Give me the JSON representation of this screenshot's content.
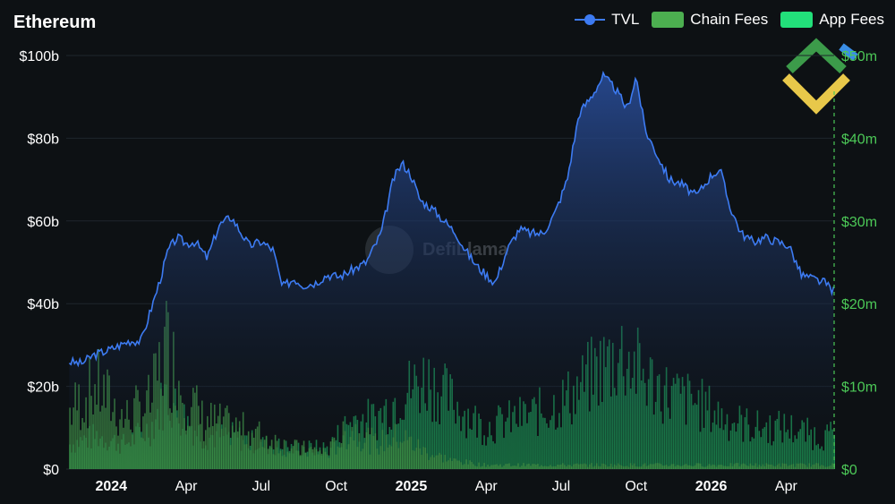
{
  "title": "Ethereum",
  "legend": [
    {
      "label": "TVL",
      "color": "#3d7bf2",
      "kind": "line"
    },
    {
      "label": "Chain Fees",
      "color": "#4caf50",
      "kind": "bar"
    },
    {
      "label": "App Fees",
      "color": "#22e07a",
      "kind": "bar"
    }
  ],
  "watermark": "DefiLlama",
  "colors": {
    "background": "#0d1114",
    "tvl_line": "#3d7bf2",
    "tvl_fill_top": "#2a4f9e",
    "chain_fees": "#4caf50",
    "right_axis": "#4cc857"
  },
  "chart_data": {
    "type": "line",
    "title": "Ethereum",
    "left_axis": {
      "ticks": [
        "$100b",
        "$80b",
        "$60b",
        "$40b",
        "$20b",
        "$0"
      ],
      "ylim": [
        0,
        100
      ],
      "unit": "b"
    },
    "right_axis": {
      "ticks": [
        "$50m",
        "$40m",
        "$30m",
        "$20m",
        "$10m",
        "$0"
      ],
      "ylim": [
        0,
        50
      ],
      "unit": "m"
    },
    "x_axis": {
      "ticks": [
        {
          "label": "2024",
          "x": 2024.0,
          "bold": true
        },
        {
          "label": "Apr",
          "x": 2024.25,
          "bold": false
        },
        {
          "label": "Jul",
          "x": 2024.5,
          "bold": false
        },
        {
          "label": "Oct",
          "x": 2024.75,
          "bold": false
        },
        {
          "label": "2025",
          "x": 2025.0,
          "bold": true
        },
        {
          "label": "Apr",
          "x": 2025.25,
          "bold": false
        },
        {
          "label": "Jul",
          "x": 2025.5,
          "bold": false
        },
        {
          "label": "Oct",
          "x": 2025.75,
          "bold": false
        },
        {
          "label": "2026",
          "x": 2026.0,
          "bold": true
        },
        {
          "label": "Apr",
          "x": 2026.25,
          "bold": false
        }
      ],
      "xlim": [
        2023.85,
        2026.41
      ]
    },
    "grid": "horizontal",
    "legend_position": "top-right",
    "series": [
      {
        "name": "TVL",
        "axis": "left",
        "x": [
          2023.86,
          2023.9,
          2023.94,
          2024.0,
          2024.06,
          2024.1,
          2024.13,
          2024.16,
          2024.19,
          2024.22,
          2024.25,
          2024.28,
          2024.32,
          2024.36,
          2024.4,
          2024.43,
          2024.46,
          2024.5,
          2024.54,
          2024.57,
          2024.61,
          2024.64,
          2024.68,
          2024.72,
          2024.76,
          2024.8,
          2024.85,
          2024.9,
          2024.94,
          2024.97,
          2025.0,
          2025.03,
          2025.07,
          2025.11,
          2025.15,
          2025.18,
          2025.22,
          2025.25,
          2025.28,
          2025.32,
          2025.36,
          2025.4,
          2025.44,
          2025.48,
          2025.52,
          2025.56,
          2025.6,
          2025.64,
          2025.68,
          2025.72,
          2025.75,
          2025.78,
          2025.82,
          2025.86,
          2025.9,
          2025.95,
          2026.0,
          2026.03,
          2026.06,
          2026.1,
          2026.14,
          2026.18,
          2026.22,
          2026.26,
          2026.3,
          2026.34,
          2026.38,
          2026.41
        ],
        "y": [
          26,
          25.5,
          27.5,
          29,
          31,
          31,
          38,
          45,
          53,
          56,
          54.5,
          55,
          51,
          59,
          61,
          57.5,
          54,
          55,
          53,
          44,
          46,
          44.5,
          45,
          47,
          46.5,
          48,
          50,
          57,
          70,
          74,
          71,
          65,
          63,
          60,
          57,
          53,
          49,
          47,
          45,
          53,
          58,
          57,
          57,
          62,
          70,
          86,
          90,
          95,
          92,
          87,
          95,
          82,
          76,
          70,
          69,
          66,
          71,
          72.5,
          64,
          57,
          55,
          56,
          55,
          54,
          47,
          46,
          45,
          43
        ]
      },
      {
        "name": "Chain Fees",
        "axis": "right",
        "x": [
          2023.86,
          2023.95,
          2024.04,
          2024.13,
          2024.18,
          2024.22,
          2024.3,
          2024.4,
          2024.5,
          2024.6,
          2024.72,
          2024.8,
          2024.88,
          2024.96,
          2025.05,
          2025.14,
          2025.24,
          2025.34,
          2025.44,
          2025.54,
          2025.62,
          2025.7,
          2025.78,
          2025.86,
          2025.95,
          2026.05,
          2026.15,
          2026.25,
          2026.35,
          2026.41
        ],
        "y": [
          7,
          10,
          6,
          8,
          15,
          11,
          6,
          5,
          4,
          2.5,
          2,
          5,
          3,
          4,
          2,
          1,
          0.5,
          0.5,
          0.5,
          0.5,
          0.5,
          0.5,
          0.5,
          0.5,
          0.5,
          0.5,
          0.5,
          0.5,
          0.5,
          0.5
        ]
      },
      {
        "name": "App Fees",
        "axis": "right",
        "x": [
          2023.86,
          2023.95,
          2024.04,
          2024.13,
          2024.18,
          2024.22,
          2024.3,
          2024.4,
          2024.5,
          2024.6,
          2024.72,
          2024.8,
          2024.88,
          2024.96,
          2025.05,
          2025.14,
          2025.24,
          2025.34,
          2025.44,
          2025.54,
          2025.62,
          2025.7,
          2025.78,
          2025.86,
          2025.95,
          2026.05,
          2026.15,
          2026.25,
          2026.35,
          2026.41
        ],
        "y": [
          3,
          4,
          3,
          5,
          9,
          7,
          4,
          4,
          3,
          2.5,
          2.5,
          6,
          6,
          9,
          11,
          8,
          5,
          6,
          7,
          9,
          12,
          14,
          11,
          9,
          8,
          6,
          5,
          5,
          4,
          4
        ]
      }
    ]
  }
}
